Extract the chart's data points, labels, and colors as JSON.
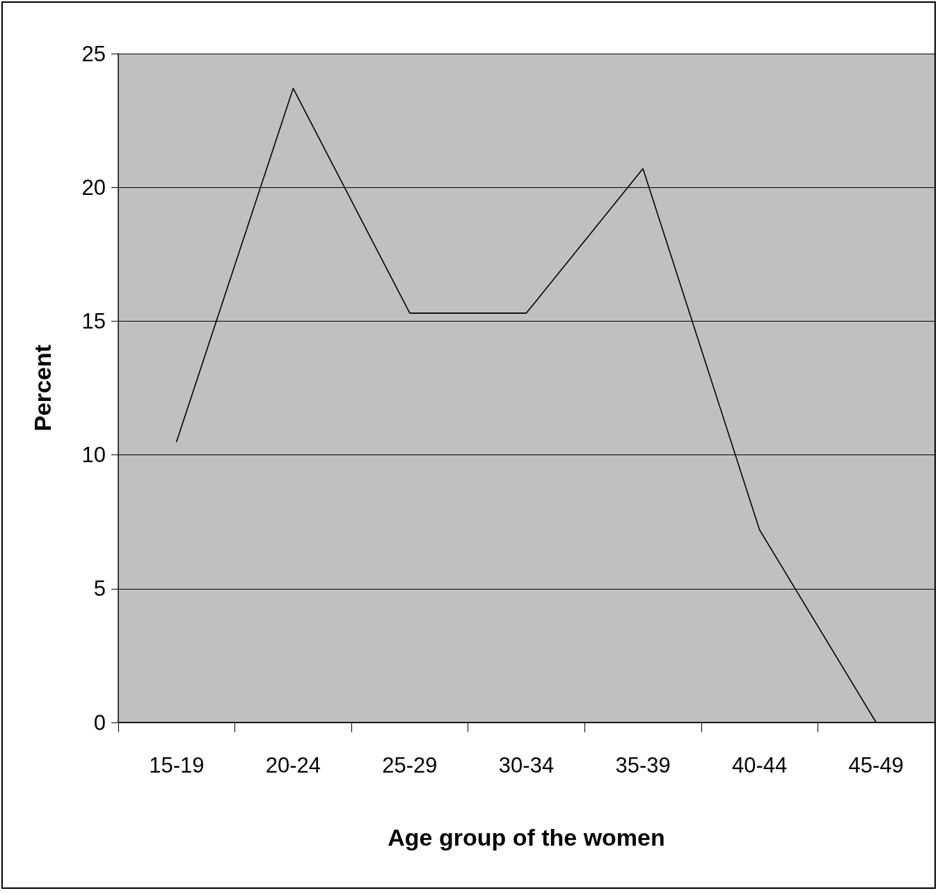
{
  "chart_data": {
    "type": "line",
    "xlabel": "Age group of the women",
    "ylabel": "Percent",
    "categories": [
      "15-19",
      "20-24",
      "25-29",
      "30-34",
      "35-39",
      "40-44",
      "45-49"
    ],
    "series": [
      {
        "color": "#000000",
        "values": [
          10.5,
          23.7,
          15.3,
          15.3,
          20.7,
          7.2,
          0
        ]
      }
    ],
    "ylim": [
      0,
      25
    ],
    "yticks": [
      0,
      5,
      10,
      15,
      20,
      25
    ],
    "grid": "y",
    "marker": "none",
    "line_style": "solid"
  }
}
